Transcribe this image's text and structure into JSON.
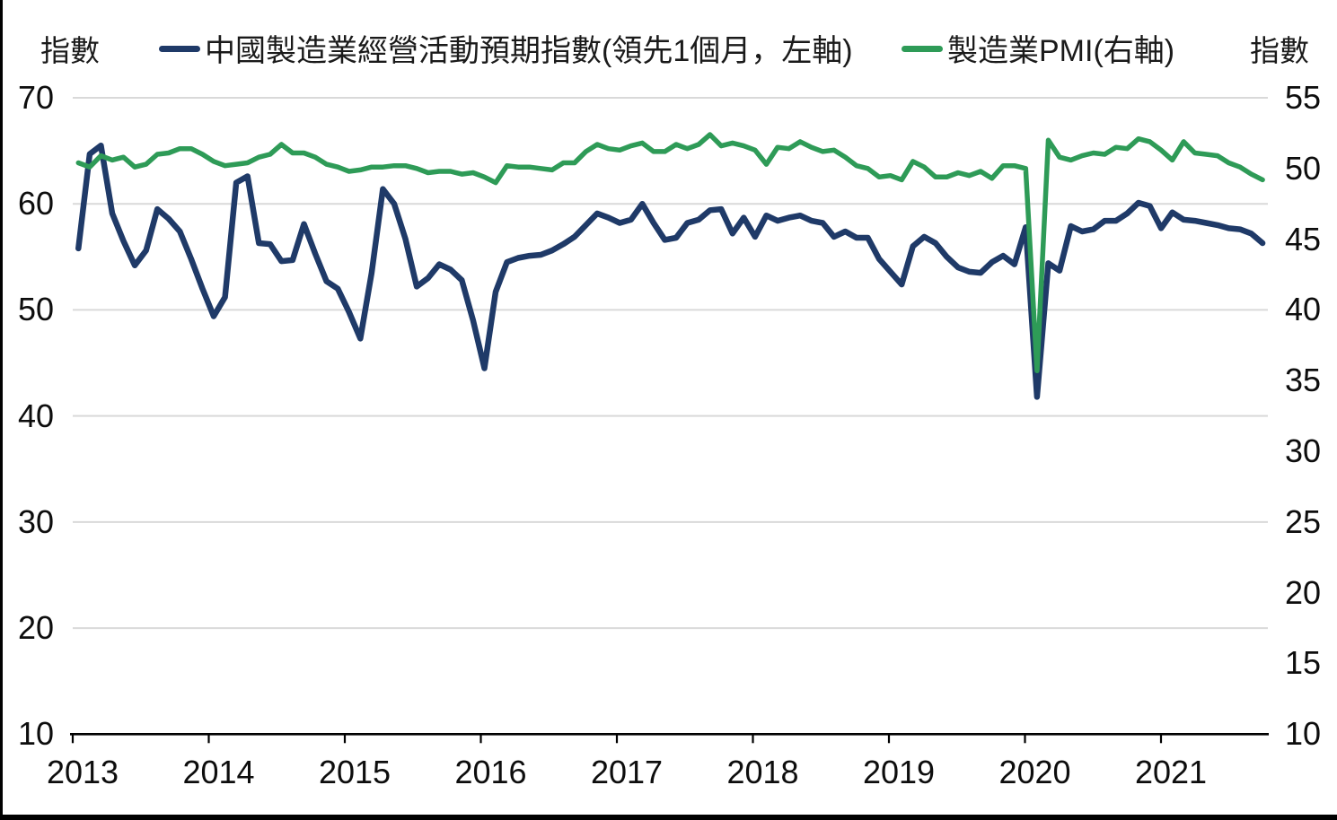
{
  "figure": {
    "left_axis_unit": "指數",
    "right_axis_unit": "指數",
    "legend": [
      {
        "label": "中國製造業經營活動預期指數(領先1個月，左軸)",
        "color": "#1f3a68"
      },
      {
        "label": "製造業PMI(右軸)",
        "color": "#2e9b57"
      }
    ]
  },
  "chart_data": {
    "type": "line",
    "frequency": "monthly",
    "start_month": "2013-01",
    "end_month": "2021-10",
    "x_tick_labels": [
      "2013",
      "2014",
      "2015",
      "2016",
      "2017",
      "2018",
      "2019",
      "2020",
      "2021"
    ],
    "left_axis": {
      "title": "指數",
      "ticks": [
        70,
        60,
        50,
        40,
        30,
        20,
        10
      ],
      "range": [
        10,
        70
      ]
    },
    "right_axis": {
      "title": "指數",
      "ticks": [
        55,
        50,
        45,
        40,
        35,
        30,
        25,
        20,
        15,
        10
      ],
      "range": [
        10,
        55
      ]
    },
    "grid": "horizontal-light-gray",
    "legend_position": "top",
    "colors": {
      "grid": "#d9d9d9",
      "axis": "#000000"
    },
    "series": [
      {
        "name": "中國製造業經營活動預期指數(領先1個月，左軸)",
        "axis": "left",
        "color": "#1f3a68",
        "stroke_width": 6.5,
        "values": [
          55.8,
          64.7,
          65.5,
          59.1,
          56.5,
          54.2,
          55.6,
          59.5,
          58.6,
          57.4,
          54.8,
          52.0,
          49.4,
          51.2,
          62.0,
          62.6,
          56.3,
          56.2,
          54.6,
          54.7,
          58.1,
          55.3,
          52.7,
          52.0,
          49.8,
          47.3,
          53.5,
          61.4,
          60.0,
          56.7,
          52.2,
          53.0,
          54.3,
          53.8,
          52.8,
          49.0,
          44.5,
          51.7,
          54.5,
          54.9,
          55.1,
          55.2,
          55.6,
          56.2,
          56.9,
          58.0,
          59.1,
          58.7,
          58.2,
          58.5,
          60.0,
          58.2,
          56.6,
          56.8,
          58.2,
          58.5,
          59.4,
          59.5,
          57.2,
          58.7,
          56.9,
          58.9,
          58.4,
          58.7,
          58.9,
          58.4,
          58.2,
          56.9,
          57.4,
          56.8,
          56.8,
          54.8,
          53.6,
          52.4,
          56.0,
          56.9,
          56.3,
          55.0,
          54.0,
          53.6,
          53.5,
          54.5,
          55.1,
          54.3,
          57.8,
          41.8,
          54.4,
          53.7,
          57.9,
          57.4,
          57.6,
          58.4,
          58.4,
          59.1,
          60.1,
          59.8,
          57.7,
          59.2,
          58.5,
          58.4,
          58.2,
          58.0,
          57.7,
          57.6,
          57.2,
          56.3
        ]
      },
      {
        "name": "製造業PMI(右軸)",
        "axis": "right",
        "color": "#2e9b57",
        "stroke_width": 5.5,
        "values": [
          50.4,
          50.1,
          50.9,
          50.6,
          50.8,
          50.1,
          50.3,
          51.0,
          51.1,
          51.4,
          51.4,
          51.0,
          50.5,
          50.2,
          50.3,
          50.4,
          50.8,
          51.0,
          51.7,
          51.1,
          51.1,
          50.8,
          50.3,
          50.1,
          49.8,
          49.9,
          50.1,
          50.1,
          50.2,
          50.2,
          50.0,
          49.7,
          49.8,
          49.8,
          49.6,
          49.7,
          49.4,
          49.0,
          50.2,
          50.1,
          50.1,
          50.0,
          49.9,
          50.4,
          50.4,
          51.2,
          51.7,
          51.4,
          51.3,
          51.6,
          51.8,
          51.2,
          51.2,
          51.7,
          51.4,
          51.7,
          52.4,
          51.6,
          51.8,
          51.6,
          51.3,
          50.3,
          51.5,
          51.4,
          51.9,
          51.5,
          51.2,
          51.3,
          50.8,
          50.2,
          50.0,
          49.4,
          49.5,
          49.2,
          50.5,
          50.1,
          49.4,
          49.4,
          49.7,
          49.5,
          49.8,
          49.3,
          50.2,
          50.2,
          50.0,
          35.7,
          52.0,
          50.8,
          50.6,
          50.9,
          51.1,
          51.0,
          51.5,
          51.4,
          52.1,
          51.9,
          51.3,
          50.6,
          51.9,
          51.1,
          51.0,
          50.9,
          50.4,
          50.1,
          49.6,
          49.2
        ]
      }
    ]
  }
}
